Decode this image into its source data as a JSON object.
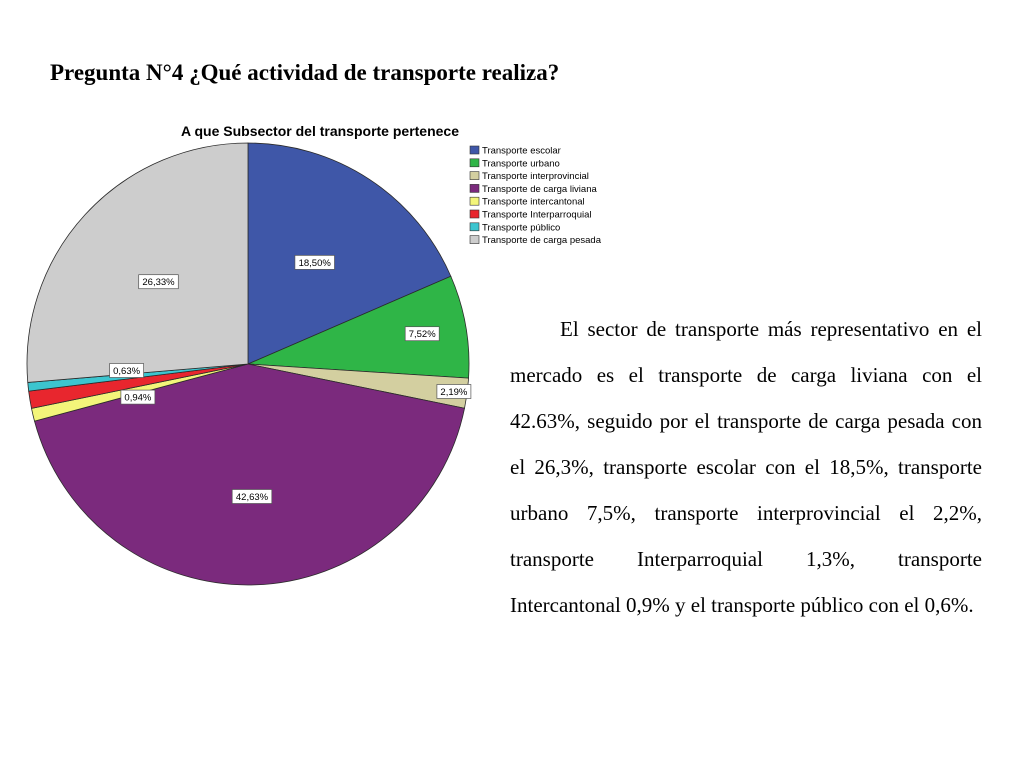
{
  "slide": {
    "heading": "Pregunta N°4 ¿Qué actividad de transporte realiza?",
    "paragraph": "El sector de transporte más representativo en el mercado es el transporte de carga liviana con el 42.63%, seguido por el transporte de carga pesada con el 26,3%, transporte escolar con el 18,5%, transporte urbano 7,5%, transporte interprovincial el 2,2%, transporte Interparroquial 1,3%, transporte Intercantonal 0,9% y el transporte público con el 0,6%."
  },
  "chart_data": {
    "type": "pie",
    "title": "A que Subsector del transporte pertenece",
    "legend_position": "right",
    "slices": [
      {
        "label": "Transporte escolar",
        "value": 18.5,
        "display": "18,50%",
        "color": "#3f57a8"
      },
      {
        "label": "Transporte urbano",
        "value": 7.52,
        "display": "7,52%",
        "color": "#2fb547"
      },
      {
        "label": "Transporte interprovincial",
        "value": 2.19,
        "display": "2,19%",
        "color": "#d3cfa0"
      },
      {
        "label": "Transporte de carga liviana",
        "value": 42.63,
        "display": "42,63%",
        "color": "#7b2a7d"
      },
      {
        "label": "Transporte intercantonal",
        "value": 0.94,
        "display": "0,94%",
        "color": "#f3f57a"
      },
      {
        "label": "Transporte Interparroquial",
        "value": 1.26,
        "display": "",
        "color": "#e8262e"
      },
      {
        "label": "Transporte público",
        "value": 0.63,
        "display": "0,63%",
        "color": "#3cc5cf"
      },
      {
        "label": "Transporte de carga pesada",
        "value": 26.33,
        "display": "26,33%",
        "color": "#cdcdcd"
      }
    ]
  }
}
